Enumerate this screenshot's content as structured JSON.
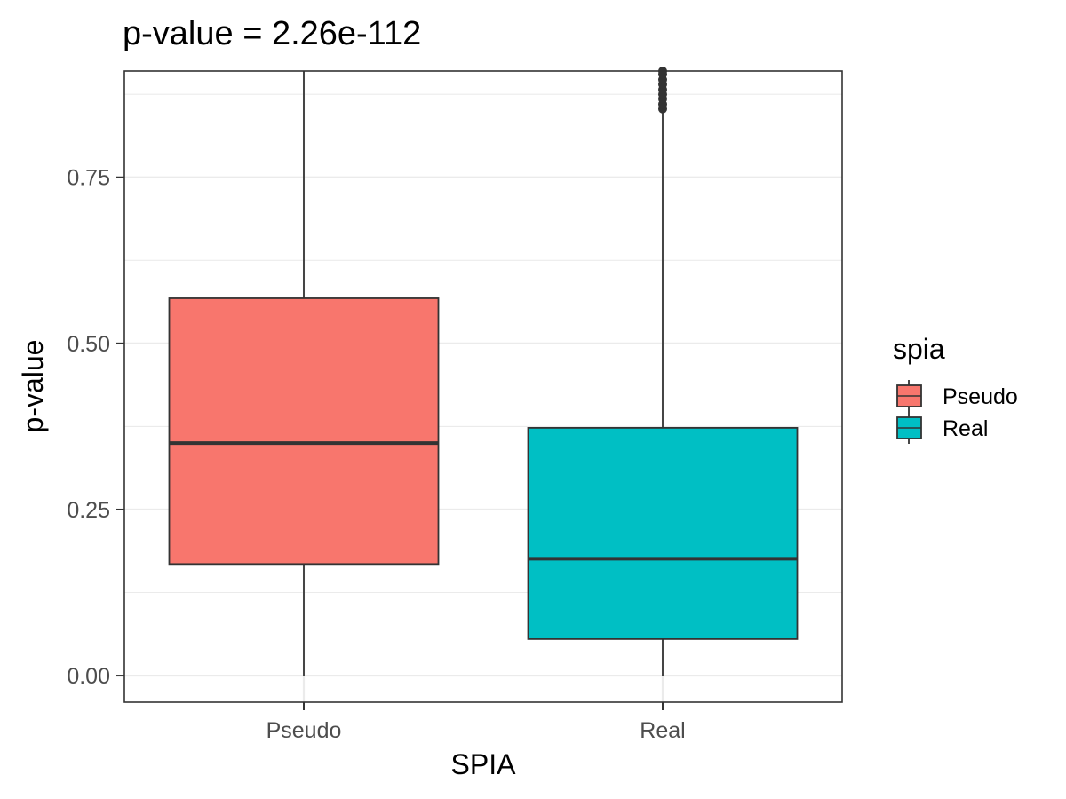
{
  "chart_data": {
    "type": "boxplot",
    "title": "p-value = 2.26e-112",
    "xlabel": "SPIA",
    "ylabel": "p-value",
    "categories": [
      "Pseudo",
      "Real"
    ],
    "ylim": [
      -0.04,
      0.91
    ],
    "yticks": [
      0.0,
      0.25,
      0.5,
      0.75
    ],
    "ytick_labels": [
      "0.00",
      "0.25",
      "0.50",
      "0.75"
    ],
    "grid": true,
    "legend": {
      "title": "spia",
      "placement": "right",
      "entries": [
        "Pseudo",
        "Real"
      ]
    },
    "colors": {
      "Pseudo": "#F8766D",
      "Real": "#00BFC4"
    },
    "boxes": [
      {
        "category": "Pseudo",
        "lower_whisker": 0.0,
        "q1": 0.168,
        "median": 0.35,
        "q3": 0.568,
        "upper_whisker": 0.91,
        "outliers": []
      },
      {
        "category": "Real",
        "lower_whisker": 0.0,
        "q1": 0.055,
        "median": 0.176,
        "q3": 0.373,
        "upper_whisker": 0.85,
        "outliers": [
          0.853,
          0.86,
          0.868,
          0.875,
          0.882,
          0.89,
          0.897,
          0.905,
          0.91
        ]
      }
    ]
  }
}
